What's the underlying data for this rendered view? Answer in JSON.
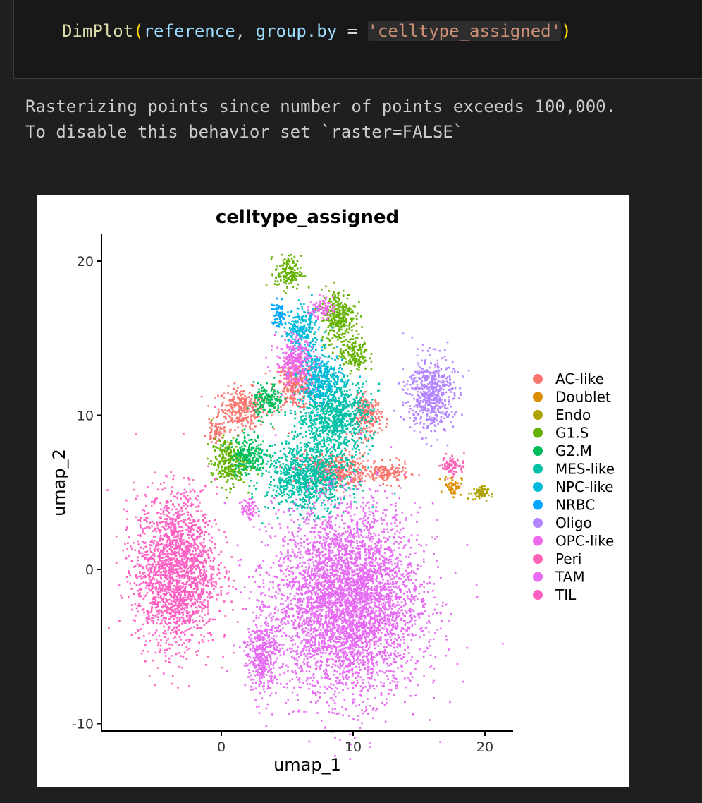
{
  "cell": {
    "code": {
      "fn": "DimPlot",
      "arg1": "reference",
      "arg2_name": "group.by",
      "op": "=",
      "arg2_value": "'celltype_assigned'"
    }
  },
  "output": {
    "line1": "Rasterizing points since number of points exceeds 100,000.",
    "line2": "To disable this behavior set `raster=FALSE`"
  },
  "colors": {
    "background": "#1f1f1f",
    "cell_bg": "#181818",
    "plot_bg": "#ffffff"
  },
  "chart_data": {
    "type": "scatter",
    "title": "celltype_assigned",
    "xlabel": "umap_1",
    "ylabel": "umap_2",
    "xlim": [
      -9,
      22
    ],
    "ylim": [
      -10.5,
      22
    ],
    "xticks": [
      0,
      10,
      20
    ],
    "yticks": [
      -10,
      0,
      10,
      20
    ],
    "grid": false,
    "legend_position": "right",
    "series": [
      {
        "name": "AC-like",
        "color": "#F8766D",
        "clusters": [
          [
            1.5,
            10.5,
            1.6,
            1.2
          ],
          [
            5.5,
            12.0,
            1.4,
            1.4
          ],
          [
            8.5,
            6.5,
            2.5,
            1.0
          ],
          [
            11.0,
            10.0,
            1.0,
            1.2
          ],
          [
            12.5,
            6.3,
            1.5,
            0.6
          ],
          [
            -0.5,
            9.0,
            0.6,
            0.6
          ]
        ]
      },
      {
        "name": "Doublet",
        "color": "#DB8E00",
        "clusters": [
          [
            17.5,
            5.5,
            0.6,
            0.6
          ]
        ]
      },
      {
        "name": "Endo",
        "color": "#AEA200",
        "clusters": [
          [
            19.5,
            5.0,
            0.6,
            0.4
          ]
        ]
      },
      {
        "name": "G1.S",
        "color": "#64B200",
        "clusters": [
          [
            5.0,
            19.3,
            0.9,
            1.0
          ],
          [
            8.8,
            16.5,
            1.2,
            1.6
          ],
          [
            0.5,
            7.0,
            1.2,
            1.4
          ],
          [
            10.0,
            14.0,
            1.0,
            1.0
          ]
        ]
      },
      {
        "name": "G2.M",
        "color": "#00BD5C",
        "clusters": [
          [
            2.0,
            7.5,
            1.2,
            1.2
          ],
          [
            3.5,
            11.0,
            1.0,
            1.0
          ]
        ]
      },
      {
        "name": "MES-like",
        "color": "#00C1A7",
        "clusters": [
          [
            6.5,
            6.0,
            2.8,
            2.0
          ],
          [
            8.5,
            10.0,
            2.5,
            2.2
          ]
        ]
      },
      {
        "name": "NPC-like",
        "color": "#00BADE",
        "clusters": [
          [
            6.0,
            15.5,
            1.2,
            1.3
          ],
          [
            7.5,
            12.5,
            1.5,
            1.5
          ]
        ]
      },
      {
        "name": "NRBC",
        "color": "#00A6FF",
        "clusters": [
          [
            4.3,
            16.5,
            0.5,
            0.8
          ]
        ]
      },
      {
        "name": "Oligo",
        "color": "#B385FF",
        "clusters": [
          [
            15.8,
            11.5,
            1.6,
            2.2
          ]
        ]
      },
      {
        "name": "OPC-like",
        "color": "#EF67EB",
        "clusters": [
          [
            5.5,
            13.5,
            1.3,
            1.4
          ],
          [
            2.0,
            4.0,
            0.5,
            0.6
          ],
          [
            7.5,
            17.0,
            0.8,
            0.6
          ]
        ]
      },
      {
        "name": "Peri",
        "color": "#FF63B6",
        "clusters": [
          [
            17.5,
            6.8,
            0.8,
            0.6
          ]
        ]
      },
      {
        "name": "TAM",
        "color": "#E76BF3",
        "clusters": [
          [
            9.5,
            -2.0,
            5.0,
            5.5
          ],
          [
            3.0,
            -5.5,
            1.0,
            2.5
          ]
        ]
      },
      {
        "name": "TIL",
        "color": "#FF61C3",
        "clusters": [
          [
            -3.5,
            0.0,
            2.8,
            4.5
          ]
        ]
      }
    ]
  }
}
